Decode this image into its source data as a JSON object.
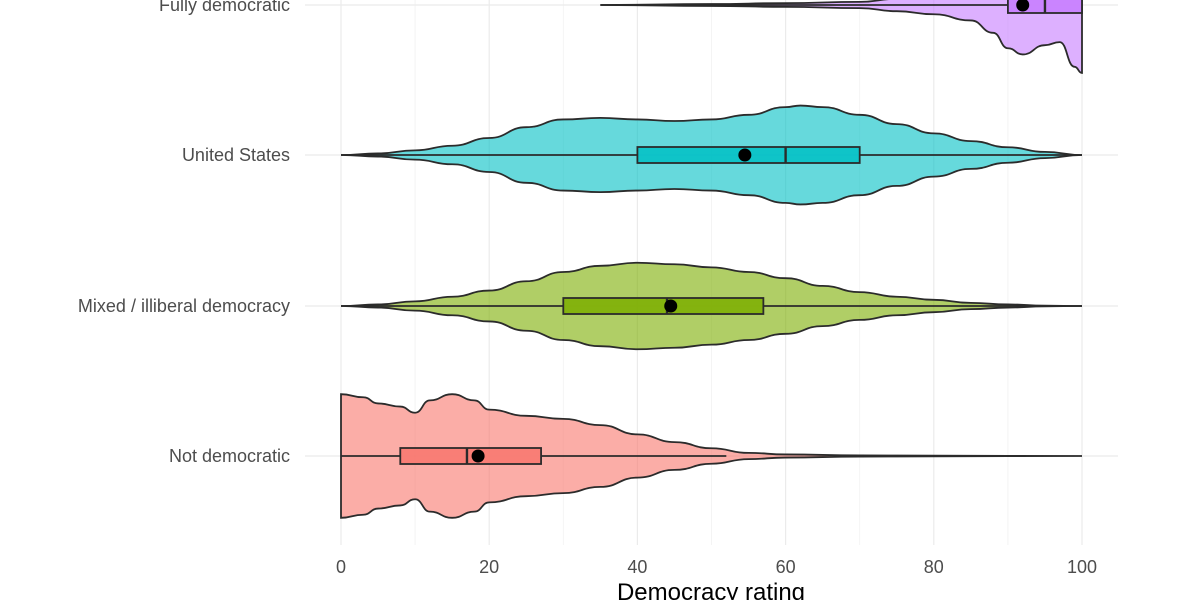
{
  "chart_data": {
    "type": "violin",
    "title": "",
    "xlabel": "Democracy rating",
    "ylabel": "",
    "xlim": [
      0,
      100
    ],
    "x_ticks": [
      {
        "value": 0,
        "label": "0"
      },
      {
        "value": 20,
        "label": "20"
      },
      {
        "value": 40,
        "label": "40"
      },
      {
        "value": 60,
        "label": "60"
      },
      {
        "value": 80,
        "label": "80"
      },
      {
        "value": 100,
        "label": "100"
      }
    ],
    "grid": true,
    "legend": "none",
    "categories": [
      {
        "name": "Fully democratic",
        "color": "#C77CFF",
        "box": {
          "q1": 90,
          "median": 95,
          "q3": 100,
          "whisker_low": 35,
          "whisker_high": 100
        },
        "mean": 92,
        "density": [
          [
            35,
            0
          ],
          [
            50,
            0.3
          ],
          [
            60,
            0.6
          ],
          [
            70,
            1
          ],
          [
            75,
            2
          ],
          [
            80,
            3
          ],
          [
            85,
            5
          ],
          [
            88,
            9
          ],
          [
            90,
            14
          ],
          [
            92,
            16
          ],
          [
            95,
            13
          ],
          [
            97,
            12
          ],
          [
            99,
            20
          ],
          [
            100,
            22
          ]
        ]
      },
      {
        "name": "United States",
        "color": "#00BFC4",
        "box": {
          "q1": 40,
          "median": 60,
          "q3": 70,
          "whisker_low": 0,
          "whisker_high": 100
        },
        "mean": 54.5,
        "density": [
          [
            0,
            0
          ],
          [
            5,
            0.5
          ],
          [
            10,
            1.5
          ],
          [
            15,
            3
          ],
          [
            20,
            5.5
          ],
          [
            25,
            9
          ],
          [
            30,
            11.5
          ],
          [
            35,
            12
          ],
          [
            40,
            11.5
          ],
          [
            45,
            11
          ],
          [
            50,
            11.5
          ],
          [
            55,
            13
          ],
          [
            60,
            15.5
          ],
          [
            62,
            16
          ],
          [
            65,
            15.5
          ],
          [
            70,
            13
          ],
          [
            75,
            10
          ],
          [
            80,
            7
          ],
          [
            85,
            4.5
          ],
          [
            90,
            2.5
          ],
          [
            95,
            1
          ],
          [
            100,
            0
          ]
        ]
      },
      {
        "name": "Mixed / illiberal democracy",
        "color": "#7CAE00",
        "box": {
          "q1": 30,
          "median": 44,
          "q3": 57,
          "whisker_low": 0,
          "whisker_high": 100
        },
        "mean": 44.5,
        "density": [
          [
            0,
            0
          ],
          [
            5,
            0.5
          ],
          [
            10,
            1.5
          ],
          [
            15,
            3
          ],
          [
            20,
            5
          ],
          [
            25,
            8
          ],
          [
            30,
            11
          ],
          [
            35,
            13
          ],
          [
            40,
            14
          ],
          [
            45,
            13.5
          ],
          [
            50,
            12.5
          ],
          [
            55,
            11
          ],
          [
            60,
            9
          ],
          [
            65,
            6.5
          ],
          [
            70,
            4.5
          ],
          [
            75,
            3
          ],
          [
            80,
            2
          ],
          [
            85,
            1
          ],
          [
            90,
            0.5
          ],
          [
            95,
            0.1
          ],
          [
            100,
            0
          ]
        ]
      },
      {
        "name": "Not democratic",
        "color": "#F8766D",
        "box": {
          "q1": 8,
          "median": 17,
          "q3": 27,
          "whisker_low": 0,
          "whisker_high": 52
        },
        "mean": 18.5,
        "density": [
          [
            0,
            20
          ],
          [
            3,
            19
          ],
          [
            5,
            17
          ],
          [
            8,
            16
          ],
          [
            10,
            14
          ],
          [
            12,
            18
          ],
          [
            15,
            20
          ],
          [
            18,
            18
          ],
          [
            20,
            15
          ],
          [
            25,
            13
          ],
          [
            30,
            12
          ],
          [
            35,
            10
          ],
          [
            40,
            7
          ],
          [
            45,
            4.5
          ],
          [
            50,
            2.5
          ],
          [
            55,
            1
          ],
          [
            60,
            0.5
          ],
          [
            70,
            0.2
          ],
          [
            80,
            0.1
          ],
          [
            100,
            0
          ]
        ]
      }
    ]
  }
}
